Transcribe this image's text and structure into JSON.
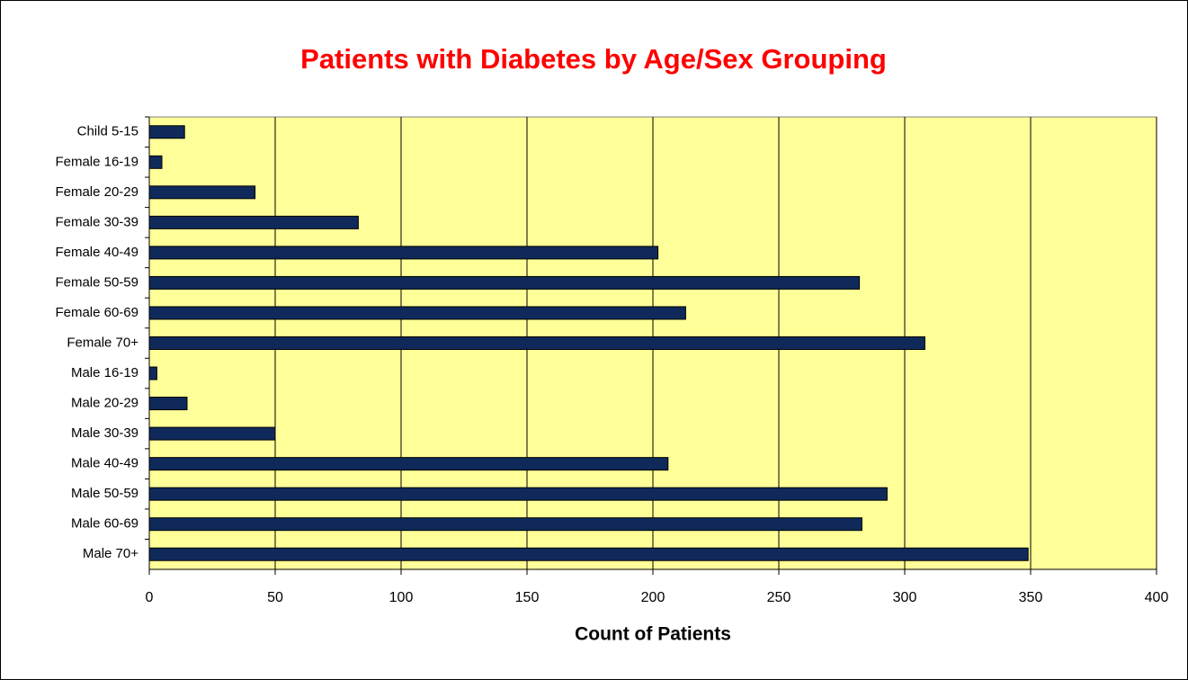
{
  "chart_data": {
    "type": "bar",
    "orientation": "horizontal",
    "title": "Patients with Diabetes by Age/Sex Grouping",
    "x_label": "Count of Patients",
    "categories": [
      "Child 5-15",
      "Female 16-19",
      "Female 20-29",
      "Female 30-39",
      "Female 40-49",
      "Female 50-59",
      "Female 60-69",
      "Female 70+",
      "Male 16-19",
      "Male 20-29",
      "Male 30-39",
      "Male 40-49",
      "Male 50-59",
      "Male 60-69",
      "Male 70+"
    ],
    "values": [
      14,
      5,
      42,
      83,
      202,
      282,
      213,
      308,
      3,
      15,
      50,
      206,
      293,
      283,
      349
    ],
    "color": "#0f2a5a",
    "xlim": [
      0,
      400
    ],
    "xticks": [
      0,
      50,
      100,
      150,
      200,
      250,
      300,
      350,
      400
    ],
    "grid": true
  }
}
